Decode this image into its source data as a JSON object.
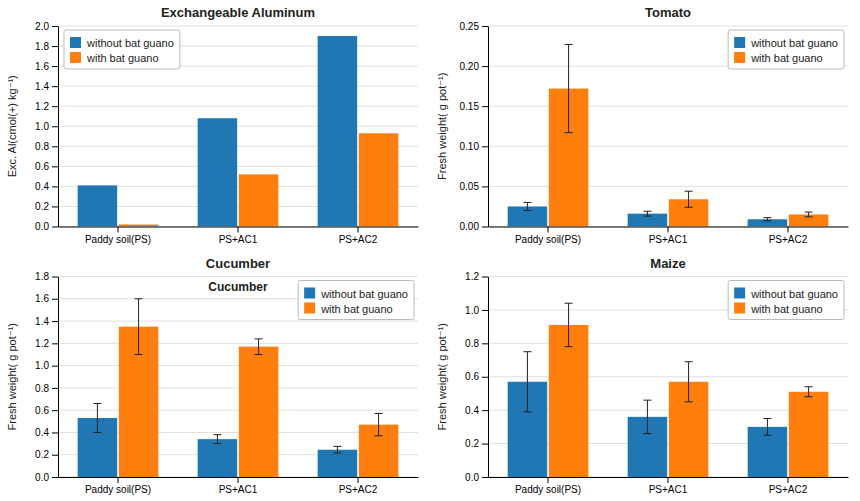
{
  "chart_data": [
    {
      "type": "bar",
      "title": "Exchangeable Aluminum",
      "categories": [
        "Paddy soil(PS)",
        "PS+AC1",
        "PS+AC2"
      ],
      "series": [
        {
          "name": "without bat guano",
          "values": [
            0.41,
            1.08,
            1.9
          ]
        },
        {
          "name": "with bat guano",
          "values": [
            0.02,
            0.52,
            0.93
          ]
        }
      ],
      "y_label": "Exc. Al(cmol(+) kg⁻¹)",
      "ylim": [
        0.0,
        2.0
      ],
      "yticks": [
        {
          "value": 0.0,
          "label": "0.0"
        },
        0.2,
        0.4,
        0.6,
        0.8,
        {
          "value": 1.0,
          "label": "1.0"
        },
        1.2,
        1.4,
        1.6,
        1.8,
        {
          "value": 2.0,
          "label": "2.0"
        }
      ],
      "grid": true,
      "legend": "upper left"
    },
    {
      "type": "bar",
      "title": "Tomato",
      "categories": [
        "Paddy soil(PS)",
        "PS+AC1",
        "PS+AC2"
      ],
      "series": [
        {
          "name": "without bat guano",
          "values": [
            0.025,
            0.016,
            0.009
          ],
          "errors": [
            0.005,
            0.003,
            0.002
          ]
        },
        {
          "name": "with bat guano",
          "values": [
            0.172,
            0.034,
            0.015
          ],
          "errors": [
            0.055,
            0.01,
            0.003
          ]
        }
      ],
      "y_label": "Fresh weight( g pot⁻¹)",
      "ylim": [
        0.0,
        0.25
      ],
      "yticks": [
        {
          "value": 0.0,
          "label": "0.00"
        },
        0.05,
        {
          "value": 0.1,
          "label": "0.10"
        },
        0.15,
        {
          "value": 0.2,
          "label": "0.20"
        },
        0.25
      ],
      "grid": true,
      "legend": "upper right"
    },
    {
      "type": "bar",
      "title": "Cucumber",
      "annotations": [
        {
          "text": "Cucumber"
        }
      ],
      "categories": [
        "Paddy soil(PS)",
        "PS+AC1",
        "PS+AC2"
      ],
      "series": [
        {
          "name": "without bat guano",
          "values": [
            0.53,
            0.34,
            0.245
          ],
          "errors": [
            0.13,
            0.04,
            0.03
          ]
        },
        {
          "name": "with bat guano",
          "values": [
            1.35,
            1.17,
            0.47
          ],
          "errors": [
            0.25,
            0.07,
            0.1
          ]
        }
      ],
      "y_label": "Fresh weight( g pot⁻¹)",
      "ylim": [
        0.0,
        1.8
      ],
      "yticks": [
        {
          "value": 0.0,
          "label": "0.0"
        },
        0.2,
        0.4,
        0.6,
        0.8,
        {
          "value": 1.0,
          "label": "1.0"
        },
        1.2,
        1.4,
        1.6,
        1.8
      ],
      "grid": true,
      "legend": "upper right"
    },
    {
      "type": "bar",
      "title": "Maize",
      "categories": [
        "Paddy soil(PS)",
        "PS+AC1",
        "PS+AC2"
      ],
      "series": [
        {
          "name": "without bat guano",
          "values": [
            0.57,
            0.36,
            0.3
          ],
          "errors": [
            0.18,
            0.1,
            0.05
          ]
        },
        {
          "name": "with bat guano",
          "values": [
            0.91,
            0.57,
            0.51
          ],
          "errors": [
            0.13,
            0.12,
            0.03
          ]
        }
      ],
      "y_label": "Fresh weight( g pot⁻¹)",
      "ylim": [
        0.0,
        1.2
      ],
      "yticks": [
        {
          "value": 0.0,
          "label": "0.0"
        },
        0.2,
        0.4,
        0.6,
        0.8,
        {
          "value": 1.0,
          "label": "1.0"
        },
        {
          "value": 1.2,
          "label": "1.2"
        }
      ],
      "grid": true,
      "legend": "upper right"
    }
  ]
}
